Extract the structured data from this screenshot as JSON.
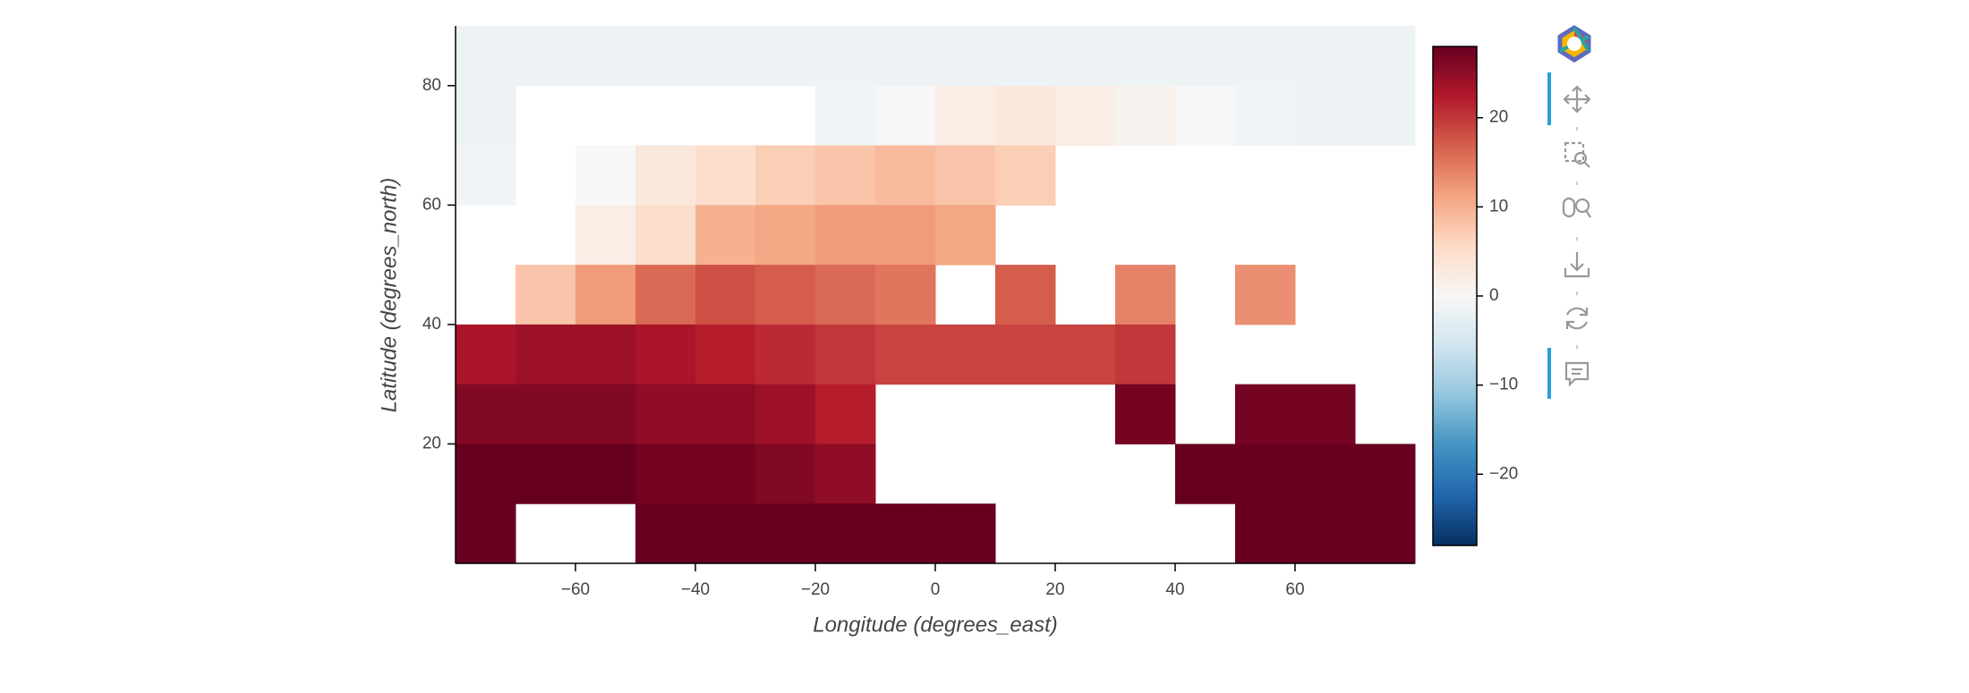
{
  "chart_data": {
    "type": "heatmap",
    "xlabel": "Longitude (degrees_east)",
    "ylabel": "Latitude (degrees_north)",
    "xlim": [
      -80,
      80
    ],
    "ylim": [
      0,
      90
    ],
    "xticks": [
      {
        "value": -60,
        "label": "−60"
      },
      {
        "value": -40,
        "label": "−40"
      },
      {
        "value": -20,
        "label": "−20"
      },
      0,
      20,
      40,
      60
    ],
    "yticks": [
      20,
      40,
      60,
      80
    ],
    "clim": [
      -28,
      28
    ],
    "cticks": [
      {
        "value": -20,
        "label": "−20"
      },
      {
        "value": -10,
        "label": "−10"
      },
      0,
      10,
      20
    ],
    "colormap": [
      "#053061",
      "#2166ac",
      "#4393c3",
      "#92c5de",
      "#d1e5f0",
      "#f7f7f7",
      "#fddbc7",
      "#f4a582",
      "#d6604d",
      "#b2182b",
      "#67001f"
    ],
    "z": [
      [
        -1.5,
        -1.5,
        -1.5,
        -1.5,
        -1.5,
        -1.5,
        -1.5,
        -1.5,
        -1.5,
        -1.5,
        -1.5,
        -1.5,
        -1.5,
        -1.5,
        -1.5,
        -1.5
      ],
      [
        -1.5,
        null,
        null,
        null,
        null,
        null,
        -1,
        0,
        2,
        3,
        2,
        1,
        0,
        -1,
        -1.5,
        -1.5
      ],
      [
        -1,
        null,
        0,
        3,
        5,
        7,
        8,
        9,
        8,
        7,
        null,
        null,
        null,
        null,
        null,
        null
      ],
      [
        null,
        null,
        2,
        5,
        10,
        11,
        12,
        12,
        11,
        null,
        null,
        null,
        null,
        null,
        null,
        null
      ],
      [
        null,
        8,
        12,
        16,
        18,
        17,
        16,
        15,
        null,
        17,
        null,
        14,
        null,
        13,
        null,
        null
      ],
      [
        23,
        24,
        24,
        23,
        22,
        21,
        20,
        19,
        19,
        19,
        19,
        20,
        null,
        null,
        null,
        null
      ],
      [
        26,
        26,
        26,
        25,
        25,
        24,
        22,
        null,
        null,
        null,
        null,
        27,
        null,
        27,
        27,
        null
      ],
      [
        28,
        28,
        28,
        27,
        27,
        26,
        25,
        null,
        null,
        null,
        null,
        null,
        28,
        28,
        28,
        28
      ],
      [
        28,
        null,
        null,
        28,
        28,
        28,
        28,
        28,
        28,
        null,
        null,
        null,
        null,
        28,
        28,
        28
      ]
    ]
  }
}
